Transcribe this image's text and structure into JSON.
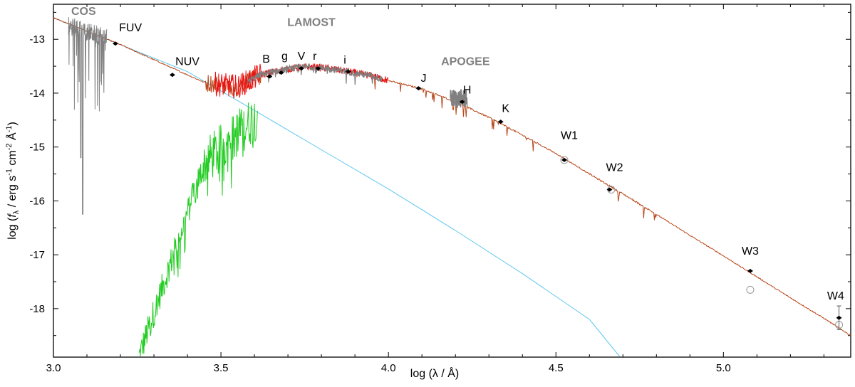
{
  "colors": {
    "model_total": "#b8471a",
    "model_white_dwarf": "#5ec8ee",
    "model_companion": "#22cc22",
    "lamost_red": "#ee1111",
    "observed_spectra": "#808080",
    "photometry": "#000000",
    "wise_open": "#999999"
  },
  "chart_data": {
    "type": "line",
    "xlabel": "log (λ / Å)",
    "ylabel_parts": {
      "prefix": "log (",
      "f": "f",
      "lambda": "λ",
      "mid": " / erg s",
      "m1": "-1",
      "cm": " cm",
      "m2": "-2",
      "A": " Å",
      "m1b": "-1",
      "close": ")"
    },
    "xlim": [
      3.0,
      5.38
    ],
    "ylim": [
      -18.9,
      -12.35
    ],
    "xticks": [
      3.0,
      3.5,
      4.0,
      4.5,
      5.0
    ],
    "xtick_labels": [
      "3.0",
      "3.5",
      "4.0",
      "4.5",
      "5.0"
    ],
    "yticks": [
      -13,
      -14,
      -15,
      -16,
      -17,
      -18
    ],
    "ytick_labels": [
      "-13",
      "-14",
      "-15",
      "-16",
      "-17",
      "-18"
    ],
    "grid": false,
    "survey_labels": [
      {
        "text": "COS",
        "x": 3.09,
        "y": -12.55
      },
      {
        "text": "LAMOST",
        "x": 3.77,
        "y": -12.75
      },
      {
        "text": "APOGEE",
        "x": 4.23,
        "y": -13.48
      }
    ],
    "band_labels": [
      {
        "text": "FUV",
        "x": 3.23,
        "y": -12.85
      },
      {
        "text": "NUV",
        "x": 3.4,
        "y": -13.48
      },
      {
        "text": "B",
        "x": 3.635,
        "y": -13.43
      },
      {
        "text": "g",
        "x": 3.69,
        "y": -13.38
      },
      {
        "text": "V",
        "x": 3.74,
        "y": -13.38
      },
      {
        "text": "r",
        "x": 3.78,
        "y": -13.38
      },
      {
        "text": "i",
        "x": 3.87,
        "y": -13.45
      },
      {
        "text": "J",
        "x": 4.105,
        "y": -13.79
      },
      {
        "text": "H",
        "x": 4.235,
        "y": -14.01
      },
      {
        "text": "K",
        "x": 4.35,
        "y": -14.35
      },
      {
        "text": "W1",
        "x": 4.54,
        "y": -14.85
      },
      {
        "text": "W2",
        "x": 4.675,
        "y": -15.45
      },
      {
        "text": "W3",
        "x": 5.08,
        "y": -17.0
      },
      {
        "text": "W4",
        "x": 5.335,
        "y": -17.83
      }
    ],
    "photometry": [
      {
        "band": "FUV",
        "x": 3.185,
        "y": -13.08
      },
      {
        "band": "NUV",
        "x": 3.355,
        "y": -13.66
      },
      {
        "band": "B",
        "x": 3.645,
        "y": -13.69
      },
      {
        "band": "g",
        "x": 3.68,
        "y": -13.62
      },
      {
        "band": "V",
        "x": 3.74,
        "y": -13.54
      },
      {
        "band": "r",
        "x": 3.79,
        "y": -13.54
      },
      {
        "band": "i",
        "x": 3.88,
        "y": -13.6
      },
      {
        "band": "J",
        "x": 4.09,
        "y": -13.91
      },
      {
        "band": "H",
        "x": 4.22,
        "y": -14.16
      },
      {
        "band": "K",
        "x": 4.335,
        "y": -14.53
      },
      {
        "band": "W1",
        "x": 4.525,
        "y": -15.24
      },
      {
        "band": "W2",
        "x": 4.66,
        "y": -15.79
      },
      {
        "band": "W3",
        "x": 5.08,
        "y": -17.3
      },
      {
        "band": "W4",
        "x": 5.345,
        "y": -18.17,
        "err": 0.22
      }
    ],
    "wise_open_circles": [
      {
        "x": 4.525,
        "y": -15.24
      },
      {
        "x": 4.665,
        "y": -15.79
      },
      {
        "x": 5.08,
        "y": -17.65
      },
      {
        "x": 5.345,
        "y": -18.3
      }
    ],
    "series": [
      {
        "id": "total-model",
        "x": [
          3.0,
          3.2,
          3.45,
          3.55,
          3.62,
          3.7,
          3.76,
          3.82,
          3.88,
          3.95,
          4.02,
          4.1,
          4.2,
          4.3,
          4.4,
          4.5,
          4.6,
          4.7,
          4.8,
          4.9,
          5.0,
          5.1,
          5.2,
          5.3,
          5.38
        ],
        "y": [
          -12.6,
          -13.1,
          -13.8,
          -13.88,
          -13.65,
          -13.55,
          -13.51,
          -13.54,
          -13.6,
          -13.68,
          -13.8,
          -13.92,
          -14.16,
          -14.45,
          -14.78,
          -15.12,
          -15.5,
          -15.87,
          -16.25,
          -16.64,
          -17.02,
          -17.41,
          -17.8,
          -18.18,
          -18.5
        ]
      },
      {
        "id": "white-dwarf-model",
        "x": [
          3.0,
          3.2,
          3.4,
          3.6,
          3.8,
          4.0,
          4.2,
          4.4,
          4.6,
          4.69
        ],
        "y": [
          -12.6,
          -13.1,
          -13.6,
          -14.32,
          -15.05,
          -15.78,
          -16.55,
          -17.35,
          -18.2,
          -18.9
        ]
      }
    ]
  }
}
